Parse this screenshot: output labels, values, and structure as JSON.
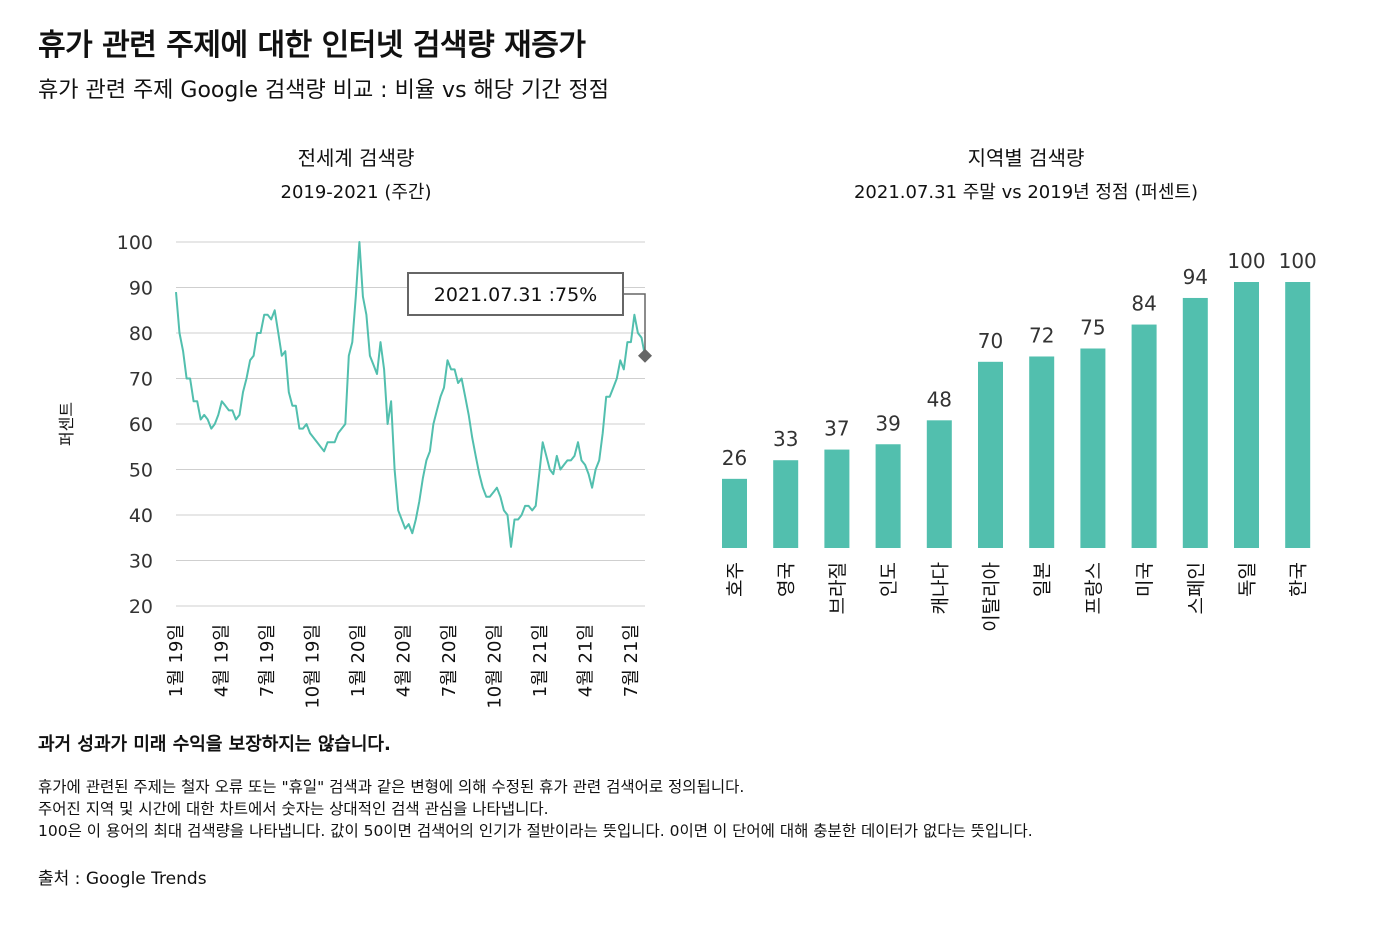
{
  "title": "휴가 관련 주제에 대한 인터넷 검색량 재증가",
  "subtitle": "휴가 관련 주제 Google 검색량 비교 : 비율 vs 해당 기간 정점",
  "colors": {
    "line": "#52bfae",
    "bar": "#52bfae",
    "grid": "#cfcfcf",
    "marker": "#666666",
    "text": "#111111"
  },
  "chart_data": [
    {
      "type": "line",
      "title": "전세계 검색량",
      "subtitle": "2019-2021 (주간)",
      "ylabel": "퍼센트",
      "ylim": [
        20,
        100
      ],
      "yticks": [
        "100",
        "90",
        "80",
        "70",
        "60",
        "50",
        "40",
        "30",
        "20"
      ],
      "xticks": [
        "1월 19일",
        "4월 19일",
        "7월 19일",
        "10월 19일",
        "1월 20일",
        "4월 20일",
        "7월 20일",
        "10월 20일",
        "1월 21일",
        "4월 21일",
        "7월 21일"
      ],
      "annotation": {
        "label": "2021.07.31 :75%",
        "value": 75
      },
      "grid": true,
      "series": [
        {
          "values": [
            89,
            80,
            76,
            70,
            70,
            65,
            65,
            61,
            62,
            61,
            59,
            60,
            62,
            65,
            64,
            63,
            63,
            61,
            62,
            67,
            70,
            74,
            75,
            80,
            80,
            84,
            84,
            83,
            85,
            80,
            75,
            76,
            67,
            64,
            64,
            59,
            59,
            60,
            58,
            57,
            56,
            55,
            54,
            56,
            56,
            56,
            58,
            59,
            60,
            75,
            78,
            88,
            100,
            88,
            84,
            75,
            73,
            71,
            78,
            72,
            60,
            65,
            50,
            41,
            39,
            37,
            38,
            36,
            39,
            43,
            48,
            52,
            54,
            60,
            63,
            66,
            68,
            74,
            72,
            72,
            69,
            70,
            66,
            62,
            57,
            53,
            49,
            46,
            44,
            44,
            45,
            46,
            44,
            41,
            40,
            33,
            39,
            39,
            40,
            42,
            42,
            41,
            42,
            49,
            56,
            53,
            50,
            49,
            53,
            50,
            51,
            52,
            52,
            53,
            56,
            52,
            51,
            49,
            46,
            50,
            52,
            58,
            66,
            66,
            68,
            70,
            74,
            72,
            78,
            78,
            84,
            80,
            79,
            75
          ]
        }
      ]
    },
    {
      "type": "bar",
      "title": "지역별 검색량",
      "subtitle": "2021.07.31 주말 vs 2019년 정점 (퍼센트)",
      "categories": [
        "호주",
        "영국",
        "브라질",
        "인도",
        "캐나다",
        "이탈리아",
        "일본",
        "프랑스",
        "미국",
        "스페인",
        "독일",
        "한국"
      ],
      "values": [
        26,
        33,
        37,
        39,
        48,
        70,
        72,
        75,
        84,
        94,
        100,
        100
      ],
      "labels": [
        "26",
        "33",
        "37",
        "39",
        "48",
        "70",
        "72",
        "75",
        "84",
        "94",
        "100",
        "100"
      ]
    }
  ],
  "footer": {
    "disclaimer": "과거 성과가 미래 수익을 보장하지는 않습니다.",
    "notes": [
      "휴가에 관련된 주제는 철자 오류 또는 \"휴일\" 검색과 같은 변형에 의해 수정된 휴가 관련 검색어로 정의됩니다.",
      "주어진 지역 및 시간에 대한 차트에서 숫자는 상대적인 검색 관심을 나타냅니다.",
      "100은 이 용어의 최대 검색량을 나타냅니다. 값이 50이면 검색어의 인기가 절반이라는 뜻입니다. 0이면 이 단어에 대해 충분한 데이터가 없다는 뜻입니다."
    ],
    "source": "출처 : Google Trends"
  }
}
